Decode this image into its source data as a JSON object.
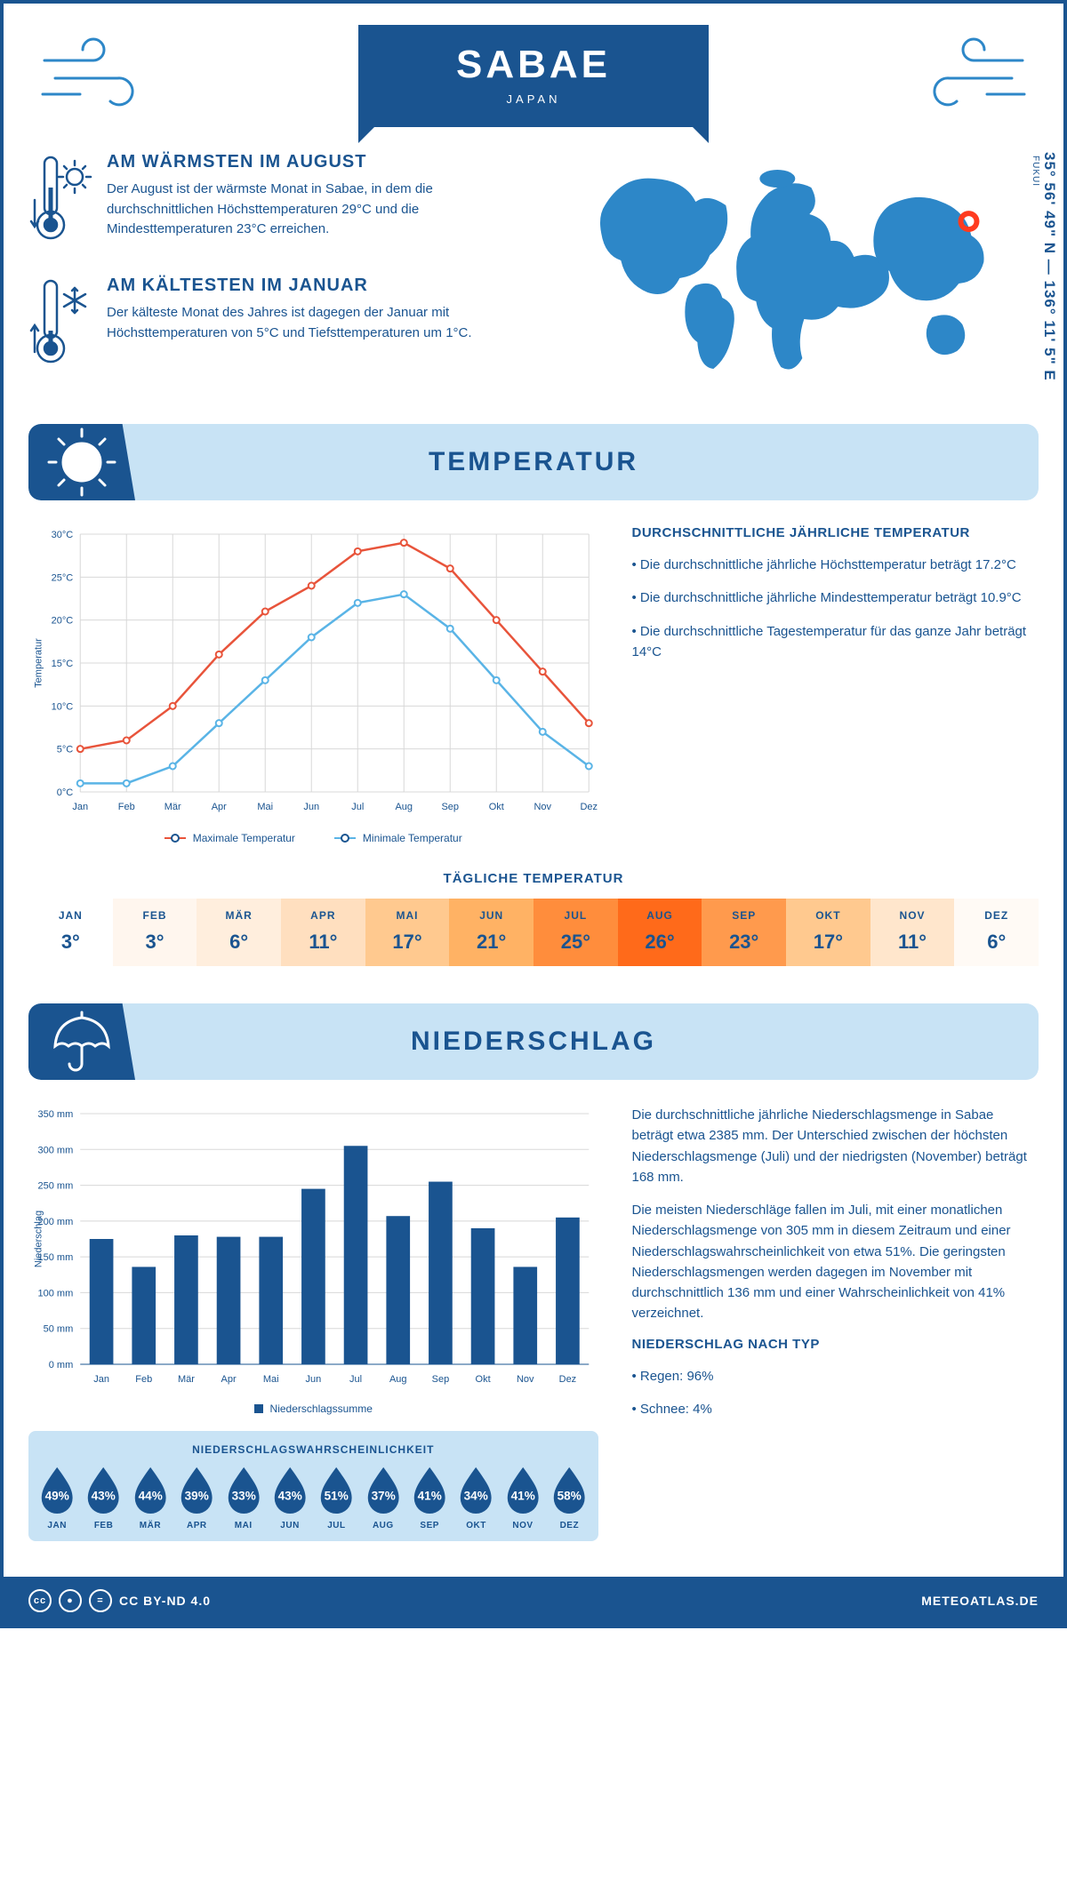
{
  "header": {
    "city": "SABAE",
    "country": "JAPAN"
  },
  "coords": "35° 56' 49\" N — 136° 11' 5\" E",
  "region": "FUKUI",
  "marker": {
    "lon": 136.19,
    "lat": 35.95
  },
  "facts": {
    "warm": {
      "title": "AM WÄRMSTEN IM AUGUST",
      "text": "Der August ist der wärmste Monat in Sabae, in dem die durchschnittlichen Höchsttemperaturen 29°C und die Mindesttemperaturen 23°C erreichen."
    },
    "cold": {
      "title": "AM KÄLTESTEN IM JANUAR",
      "text": "Der kälteste Monat des Jahres ist dagegen der Januar mit Höchsttemperaturen von 5°C und Tiefsttemperaturen um 1°C."
    }
  },
  "temp_section": {
    "heading": "TEMPERATUR",
    "chart": {
      "months": [
        "Jan",
        "Feb",
        "Mär",
        "Apr",
        "Mai",
        "Jun",
        "Jul",
        "Aug",
        "Sep",
        "Okt",
        "Nov",
        "Dez"
      ],
      "max": [
        5,
        6,
        10,
        16,
        21,
        24,
        28,
        29,
        26,
        20,
        14,
        8
      ],
      "min": [
        1,
        1,
        3,
        8,
        13,
        18,
        22,
        23,
        19,
        13,
        7,
        3
      ],
      "ylabel": "Temperatur",
      "ylim": [
        0,
        30
      ],
      "ytick_step": 5,
      "max_color": "#e8543b",
      "min_color": "#5ab4e6",
      "grid_color": "#d8d8d8",
      "marker": "circle"
    },
    "legend": {
      "max": "Maximale Temperatur",
      "min": "Minimale Temperatur"
    },
    "info": {
      "heading": "DURCHSCHNITTLICHE JÄHRLICHE TEMPERATUR",
      "b1": "• Die durchschnittliche jährliche Höchsttemperatur beträgt 17.2°C",
      "b2": "• Die durchschnittliche jährliche Mindesttemperatur beträgt 10.9°C",
      "b3": "• Die durchschnittliche Tagestemperatur für das ganze Jahr beträgt 14°C"
    },
    "daily": {
      "heading": "TÄGLICHE TEMPERATUR",
      "months": [
        "JAN",
        "FEB",
        "MÄR",
        "APR",
        "MAI",
        "JUN",
        "JUL",
        "AUG",
        "SEP",
        "OKT",
        "NOV",
        "DEZ"
      ],
      "values": [
        "3°",
        "3°",
        "6°",
        "11°",
        "17°",
        "21°",
        "25°",
        "26°",
        "23°",
        "17°",
        "11°",
        "6°"
      ],
      "colors": [
        "#ffffff",
        "#fff6ee",
        "#ffeedd",
        "#ffdfbf",
        "#ffc98f",
        "#ffb264",
        "#ff8d3c",
        "#ff6a1a",
        "#ff9a4d",
        "#ffc98f",
        "#ffe6cc",
        "#fffaf5"
      ]
    }
  },
  "precip_section": {
    "heading": "NIEDERSCHLAG",
    "chart": {
      "months": [
        "Jan",
        "Feb",
        "Mär",
        "Apr",
        "Mai",
        "Jun",
        "Jul",
        "Aug",
        "Sep",
        "Okt",
        "Nov",
        "Dez"
      ],
      "values": [
        175,
        136,
        180,
        178,
        178,
        245,
        305,
        207,
        255,
        190,
        136,
        205
      ],
      "ylabel": "Niederschlag",
      "ylim": [
        0,
        350
      ],
      "ytick_step": 50,
      "bar_color": "#1a5490",
      "grid_color": "#d8d8d8",
      "legend_label": "Niederschlagssumme"
    },
    "text": {
      "p1": "Die durchschnittliche jährliche Niederschlagsmenge in Sabae beträgt etwa 2385 mm. Der Unterschied zwischen der höchsten Niederschlagsmenge (Juli) und der niedrigsten (November) beträgt 168 mm.",
      "p2": "Die meisten Niederschläge fallen im Juli, mit einer monatlichen Niederschlagsmenge von 305 mm in diesem Zeitraum und einer Niederschlagswahrscheinlichkeit von etwa 51%. Die geringsten Niederschlagsmengen werden dagegen im November mit durchschnittlich 136 mm und einer Wahrscheinlichkeit von 41% verzeichnet.",
      "type_head": "NIEDERSCHLAG NACH TYP",
      "rain": "• Regen: 96%",
      "snow": "• Schnee: 4%"
    },
    "prob": {
      "heading": "NIEDERSCHLAGSWAHRSCHEINLICHKEIT",
      "months": [
        "JAN",
        "FEB",
        "MÄR",
        "APR",
        "MAI",
        "JUN",
        "JUL",
        "AUG",
        "SEP",
        "OKT",
        "NOV",
        "DEZ"
      ],
      "values": [
        "49%",
        "43%",
        "44%",
        "39%",
        "33%",
        "43%",
        "51%",
        "37%",
        "41%",
        "34%",
        "41%",
        "58%"
      ],
      "drop_color": "#1a5490"
    }
  },
  "footer": {
    "license": "CC BY-ND 4.0",
    "site": "METEOATLAS.DE"
  }
}
